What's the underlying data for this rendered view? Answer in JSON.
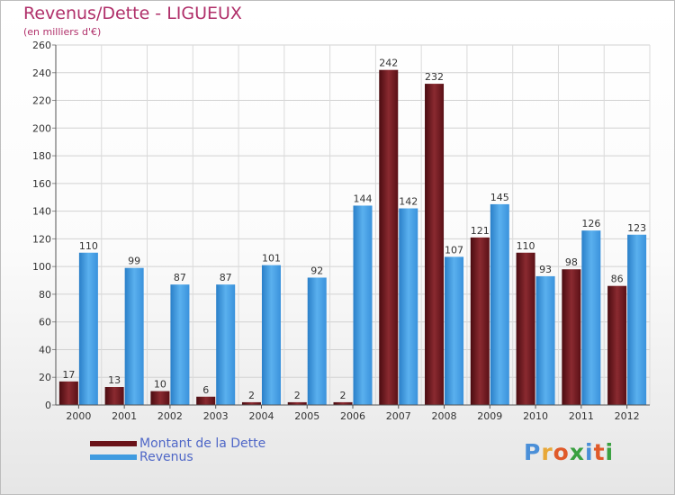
{
  "title": "Revenus/Dette - LIGUEUX",
  "subtitle": "(en milliers d'€)",
  "logo": {
    "text": "Proxiti",
    "letter_colors": [
      "#4a8fd8",
      "#e8a838",
      "#e05a2a",
      "#3aa040",
      "#4a8fd8",
      "#e05a2a",
      "#3aa040"
    ]
  },
  "chart_data": {
    "type": "bar",
    "categories": [
      "2000",
      "2001",
      "2002",
      "2003",
      "2004",
      "2005",
      "2006",
      "2007",
      "2008",
      "2009",
      "2010",
      "2011",
      "2012"
    ],
    "series": [
      {
        "name": "Montant de la Dette",
        "color": "#7a1e24",
        "values": [
          17,
          13,
          10,
          6,
          2,
          2,
          2,
          242,
          232,
          121,
          110,
          98,
          86
        ]
      },
      {
        "name": "Revenus",
        "color": "#3f9be0",
        "values": [
          110,
          99,
          87,
          87,
          101,
          92,
          144,
          142,
          107,
          145,
          93,
          126,
          123
        ]
      }
    ],
    "ylim": [
      0,
      260
    ],
    "yticks": [
      0,
      20,
      40,
      60,
      80,
      100,
      120,
      140,
      160,
      180,
      200,
      220,
      240,
      260
    ],
    "grid": true,
    "legend_position": "bottom-left"
  }
}
